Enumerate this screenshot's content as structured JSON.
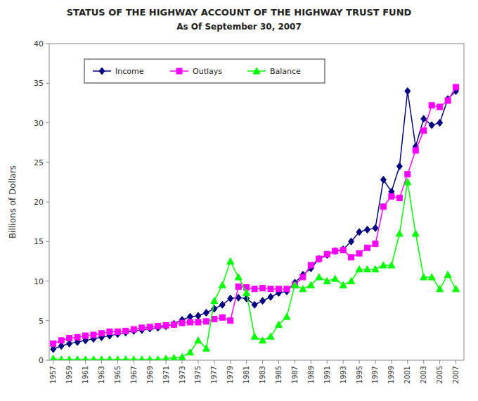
{
  "chart_data": {
    "type": "line",
    "title": "STATUS OF THE HIGHWAY ACCOUNT OF THE HIGHWAY TRUST FUND",
    "subtitle": "As Of September 30, 2007",
    "y_label": "Billions of Dollars",
    "x": [
      1957,
      1958,
      1959,
      1960,
      1961,
      1962,
      1963,
      1964,
      1965,
      1966,
      1967,
      1968,
      1969,
      1970,
      1971,
      1972,
      1973,
      1974,
      1975,
      1976,
      1977,
      1978,
      1979,
      1980,
      1981,
      1982,
      1983,
      1984,
      1985,
      1986,
      1987,
      1988,
      1989,
      1990,
      1991,
      1992,
      1993,
      1994,
      1995,
      1996,
      1997,
      1998,
      1999,
      2000,
      2001,
      2002,
      2003,
      2004,
      2005,
      2006,
      2007
    ],
    "xlim": [
      1956.5,
      2008
    ],
    "xticks": [
      1957,
      1959,
      1961,
      1963,
      1965,
      1967,
      1969,
      1971,
      1973,
      1975,
      1977,
      1979,
      1981,
      1983,
      1985,
      1987,
      1989,
      1991,
      1993,
      1995,
      1997,
      1999,
      2001,
      2003,
      2005,
      2007
    ],
    "ylim": [
      0,
      40
    ],
    "yticks": [
      0,
      5,
      10,
      15,
      20,
      25,
      30,
      35,
      40
    ],
    "grid": false,
    "legend": "upper left",
    "series": [
      {
        "name": "Income",
        "color": "#000080",
        "marker": "diamond",
        "line_style": "solid",
        "values": [
          1.4,
          1.8,
          2.1,
          2.3,
          2.5,
          2.7,
          2.9,
          3.1,
          3.3,
          3.5,
          3.7,
          3.8,
          4.0,
          4.1,
          4.3,
          4.6,
          5.1,
          5.5,
          5.6,
          6.0,
          6.5,
          7.0,
          7.8,
          7.9,
          7.8,
          7.0,
          7.5,
          8.0,
          8.5,
          8.7,
          9.8,
          10.8,
          11.6,
          12.8,
          13.3,
          13.8,
          14.0,
          15.0,
          16.2,
          16.5,
          16.7,
          22.8,
          21.3,
          24.5,
          34.0,
          27.0,
          30.5,
          29.7,
          30.0,
          33.0,
          34.0
        ]
      },
      {
        "name": "Outlays",
        "color": "#FF00FF",
        "marker": "square",
        "line_style": "solid",
        "values": [
          2.1,
          2.5,
          2.8,
          2.9,
          3.1,
          3.2,
          3.4,
          3.6,
          3.6,
          3.7,
          3.9,
          4.1,
          4.2,
          4.3,
          4.4,
          4.5,
          4.7,
          4.8,
          4.8,
          4.9,
          5.2,
          5.4,
          5.0,
          9.3,
          9.2,
          9.0,
          9.1,
          9.0,
          9.0,
          9.0,
          9.5,
          10.5,
          12.0,
          12.8,
          13.4,
          13.8,
          13.9,
          13.0,
          13.5,
          14.2,
          14.7,
          19.4,
          20.7,
          20.5,
          23.5,
          26.5,
          29.0,
          32.2,
          32.0,
          32.8,
          34.5
        ]
      },
      {
        "name": "Balance",
        "color": "#00FF00",
        "marker": "triangle",
        "line_style": "solid",
        "values": [
          0.2,
          0.1,
          0.1,
          0.1,
          0.1,
          0.1,
          0.1,
          0.1,
          0.1,
          0.1,
          0.1,
          0.1,
          0.1,
          0.1,
          0.2,
          0.3,
          0.4,
          1.0,
          2.5,
          1.5,
          7.5,
          9.5,
          12.5,
          10.5,
          8.5,
          3.0,
          2.5,
          3.0,
          4.5,
          5.5,
          9.5,
          9.0,
          9.5,
          10.5,
          10.0,
          10.3,
          9.5,
          10.0,
          11.5,
          11.5,
          11.5,
          12.0,
          12.0,
          16.0,
          22.5,
          16.0,
          10.5,
          10.5,
          9.0,
          10.8,
          9.0
        ]
      }
    ]
  }
}
